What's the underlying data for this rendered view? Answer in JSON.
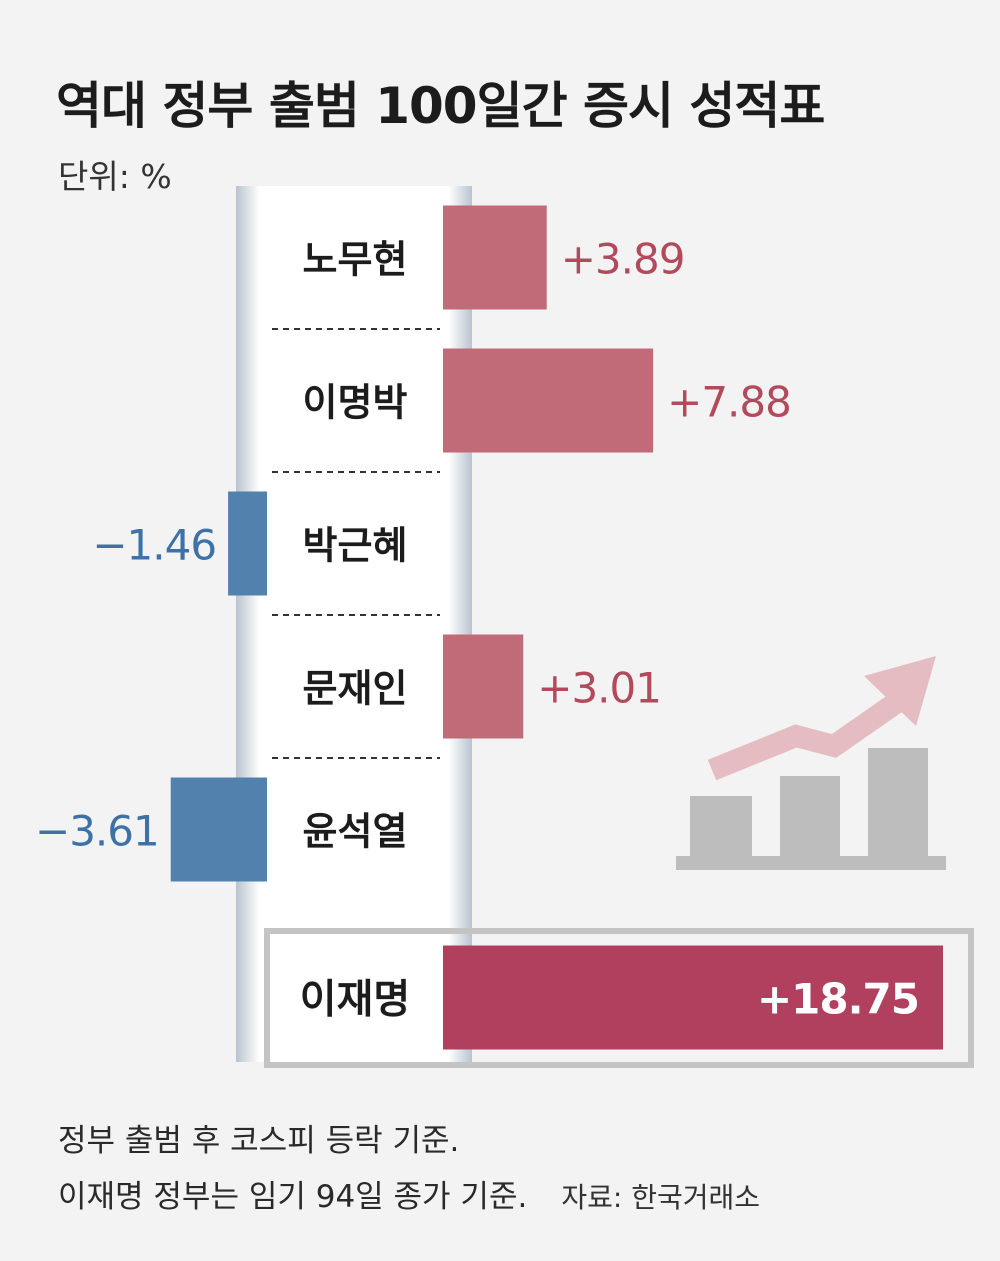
{
  "title": "역대 정부 출범 100일간 증시 성적표",
  "unit": "단위: %",
  "notes": [
    "정부 출범 후 코스피 등락 기준.",
    "이재명 정부는 임기 94일 종가 기준."
  ],
  "source": "자료: 한국거래소",
  "colors": {
    "positive": "#c06b77",
    "negative": "#5381ad",
    "highlight": "#b0405e",
    "positive_text": "#b24a5c",
    "negative_text": "#3d72a8"
  },
  "chart_data": {
    "type": "bar",
    "orientation": "horizontal",
    "categories": [
      "노무현",
      "이명박",
      "박근혜",
      "문재인",
      "윤석열",
      "이재명"
    ],
    "values": [
      3.89,
      7.88,
      -1.46,
      3.01,
      -3.61,
      18.75
    ],
    "value_labels": [
      "+3.89",
      "+7.88",
      "−1.46",
      "+3.01",
      "−3.61",
      "+18.75"
    ],
    "highlight_index": 5,
    "unit": "%"
  },
  "decoration": {
    "icon": "rising-bar-chart-icon"
  }
}
